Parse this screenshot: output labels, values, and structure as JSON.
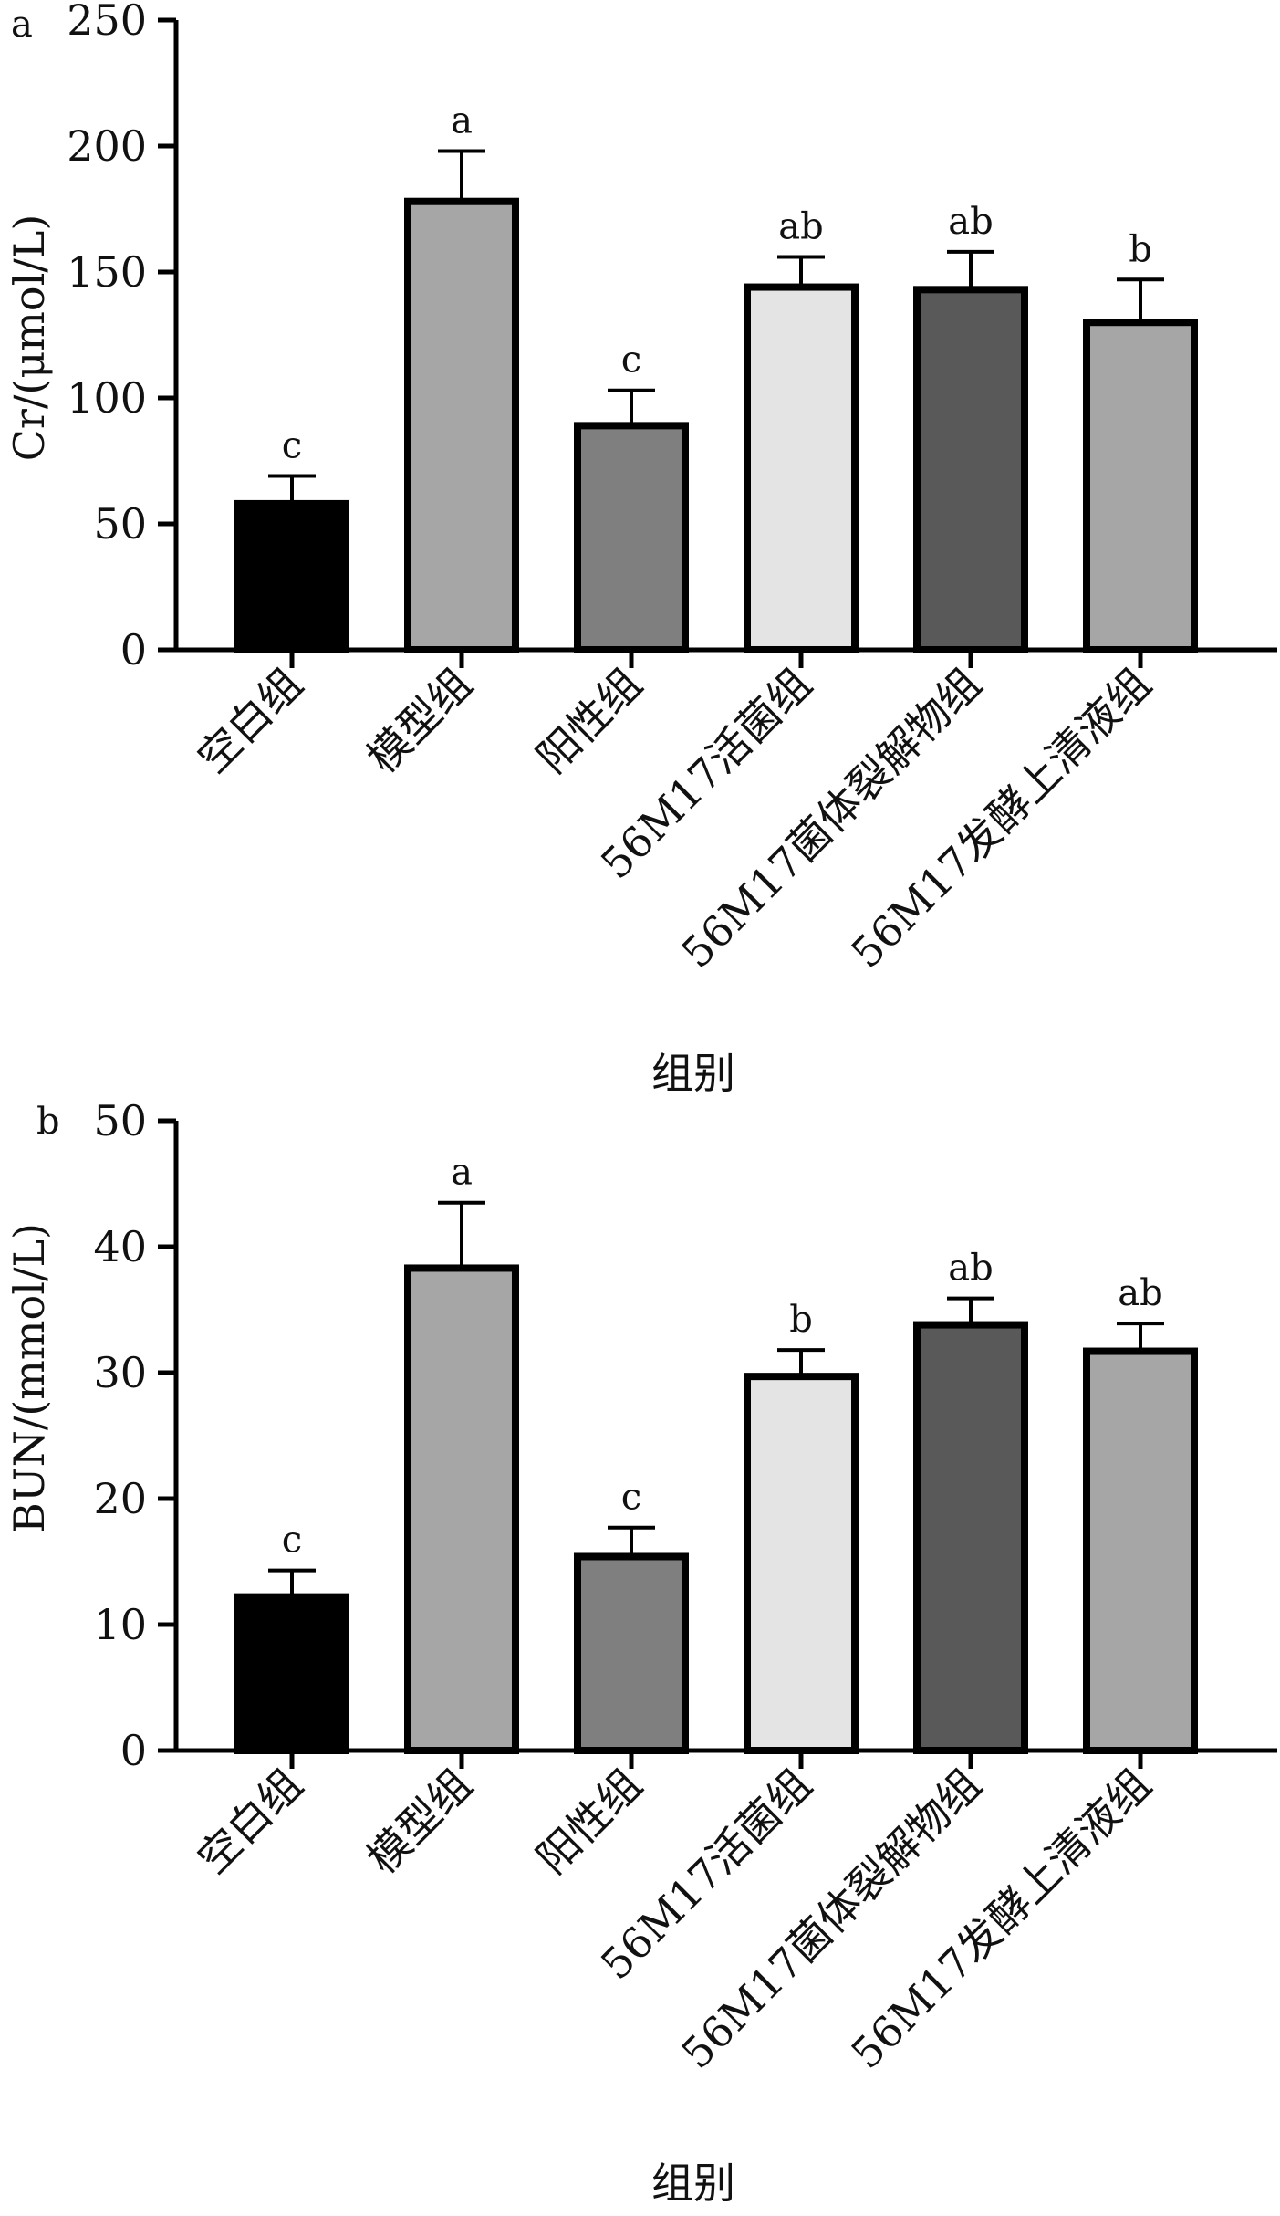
{
  "chart_data": [
    {
      "type": "bar",
      "panel_label": "a",
      "ylabel": "Cr/(μmol/L)",
      "xlabel": "组别",
      "ylim": [
        0,
        250
      ],
      "yticks": [
        0,
        50,
        100,
        150,
        200,
        250
      ],
      "categories": [
        "空白组",
        "模型组",
        "阳性组",
        "56M17活菌组",
        "56M17菌体裂解物组",
        "56M17发酵上清液组"
      ],
      "values": [
        58,
        178,
        89,
        144,
        143,
        130
      ],
      "errors": [
        11,
        20,
        14,
        12,
        15,
        17
      ],
      "significance": [
        "c",
        "a",
        "c",
        "ab",
        "ab",
        "b"
      ],
      "bar_colors": [
        "#000000",
        "#a6a6a6",
        "#7f7f7f",
        "#e4e4e4",
        "#595959",
        "#a6a6a6"
      ],
      "grid": false,
      "legend": "none"
    },
    {
      "type": "bar",
      "panel_label": "b",
      "ylabel": "BUN/(mmol/L)",
      "xlabel": "组别",
      "ylim": [
        0,
        50
      ],
      "yticks": [
        0,
        10,
        20,
        30,
        40,
        50
      ],
      "categories": [
        "空白组",
        "模型组",
        "阳性组",
        "56M17活菌组",
        "56M17菌体裂解物组",
        "56M17发酵上清液组"
      ],
      "values": [
        12.2,
        38.3,
        15.4,
        29.7,
        33.8,
        31.7
      ],
      "errors": [
        2.1,
        5.2,
        2.3,
        2.1,
        2.1,
        2.2
      ],
      "significance": [
        "c",
        "a",
        "c",
        "b",
        "ab",
        "ab"
      ],
      "bar_colors": [
        "#000000",
        "#a6a6a6",
        "#7f7f7f",
        "#e4e4e4",
        "#595959",
        "#a6a6a6"
      ],
      "grid": false,
      "legend": "none"
    }
  ]
}
